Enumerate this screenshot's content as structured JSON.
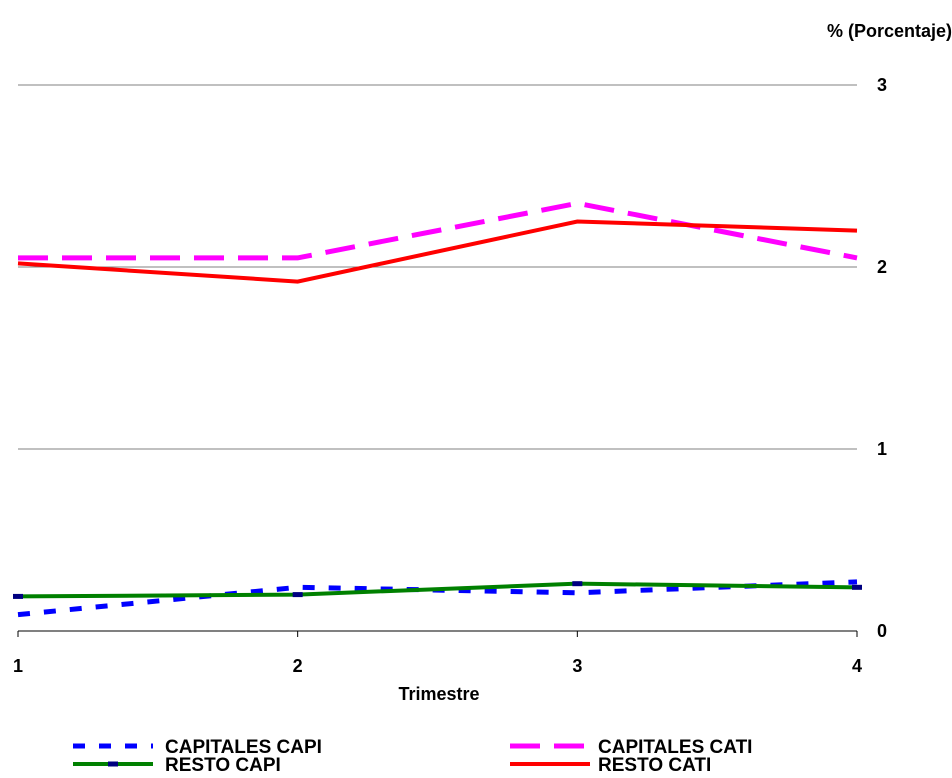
{
  "chart_data": {
    "type": "line",
    "unit_label": "% (Porcentaje)",
    "xlabel": "Trimestre",
    "x": [
      1,
      2,
      3,
      4
    ],
    "ylim": [
      0,
      3
    ],
    "yticks": [
      0,
      1,
      2,
      3
    ],
    "grid": "horizontal",
    "y_axis_position": "right",
    "legend_position": "bottom",
    "series": [
      {
        "name": "CAPITALES CAPI",
        "values": [
          0.09,
          0.24,
          0.21,
          0.27
        ],
        "color": "#0000ff",
        "style": "dotted"
      },
      {
        "name": "CAPITALES CATI",
        "values": [
          2.05,
          2.05,
          2.35,
          2.05
        ],
        "color": "#ff00ff",
        "style": "dashed"
      },
      {
        "name": "RESTO CAPI",
        "values": [
          0.19,
          0.2,
          0.26,
          0.24
        ],
        "color": "#008000",
        "style": "solid"
      },
      {
        "name": "RESTO CATI",
        "values": [
          2.02,
          1.92,
          2.25,
          2.2
        ],
        "color": "#ff0000",
        "style": "solid"
      }
    ]
  }
}
